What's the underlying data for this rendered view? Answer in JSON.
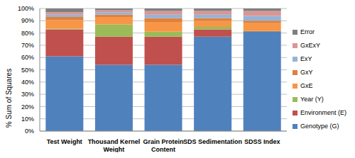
{
  "chart_data": {
    "type": "bar",
    "stacked": true,
    "grid": true,
    "legend": "right",
    "y_label": "% Sum of Squares",
    "categories": [
      "Test Weight",
      "Thousand Kernel Weight",
      "Grain Protein Content",
      "SDS Sedimentation",
      "SDSS Index"
    ],
    "ylim": [
      0,
      100
    ],
    "yticks": [
      {
        "value": 0,
        "label": "0%"
      },
      {
        "value": 10,
        "label": "10%"
      },
      {
        "value": 20,
        "label": "20%"
      },
      {
        "value": 30,
        "label": "30%"
      },
      {
        "value": 40,
        "label": "40%"
      },
      {
        "value": 50,
        "label": "50%"
      },
      {
        "value": 60,
        "label": "60%"
      },
      {
        "value": 70,
        "label": "70%"
      },
      {
        "value": 80,
        "label": "80%"
      },
      {
        "value": 90,
        "label": "90%"
      },
      {
        "value": 100,
        "label": "100%"
      }
    ],
    "series": [
      {
        "name": "Genotype (G)",
        "color": "#4f81bd",
        "values": [
          61,
          54,
          54,
          77,
          81
        ]
      },
      {
        "name": "Environment (E)",
        "color": "#c0504d",
        "values": [
          22,
          23,
          23,
          6,
          0.5
        ]
      },
      {
        "name": "Year (Y)",
        "color": "#9bbb59",
        "values": [
          0.5,
          10,
          4,
          2,
          0.5
        ]
      },
      {
        "name": "GxE",
        "color": "#f79646",
        "values": [
          7,
          6,
          8,
          5,
          6
        ]
      },
      {
        "name": "GxY",
        "color": "#e0803a",
        "values": [
          2.5,
          2,
          3,
          2,
          2
        ]
      },
      {
        "name": "ExY",
        "color": "#95b3d7",
        "values": [
          2,
          2,
          3,
          3,
          4
        ]
      },
      {
        "name": "GxExY",
        "color": "#d99694",
        "values": [
          2,
          1.5,
          3,
          3,
          4
        ]
      },
      {
        "name": "Error",
        "color": "#7f7f7f",
        "values": [
          3,
          1.5,
          2,
          2,
          2
        ]
      }
    ]
  }
}
